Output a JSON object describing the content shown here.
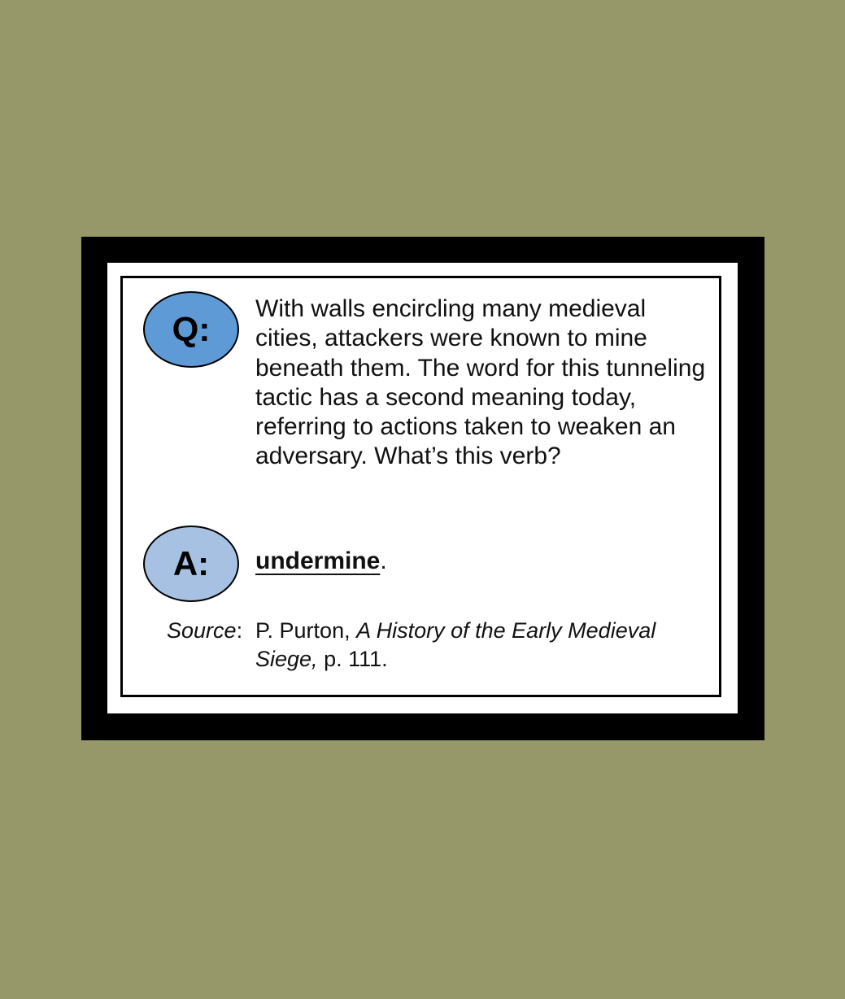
{
  "colors": {
    "background": "#969869",
    "frame": "#000000",
    "card": "#ffffff",
    "question_badge": "#5e9bd6",
    "answer_badge": "#a7c1e3"
  },
  "question": {
    "badge_label": "Q:",
    "text": "With walls encircling many medieval cities, attackers were known to mine beneath them. The word for this tunneling tactic has a second meaning today, referring to actions taken to weaken an adversary. What’s this verb?"
  },
  "answer": {
    "badge_label": "A:",
    "word": "undermine",
    "suffix": "."
  },
  "source": {
    "label": "Source",
    "colon": ":",
    "author": "P. Purton, ",
    "title": "A History of the Early Medieval Siege,",
    "page": " p. 111."
  }
}
